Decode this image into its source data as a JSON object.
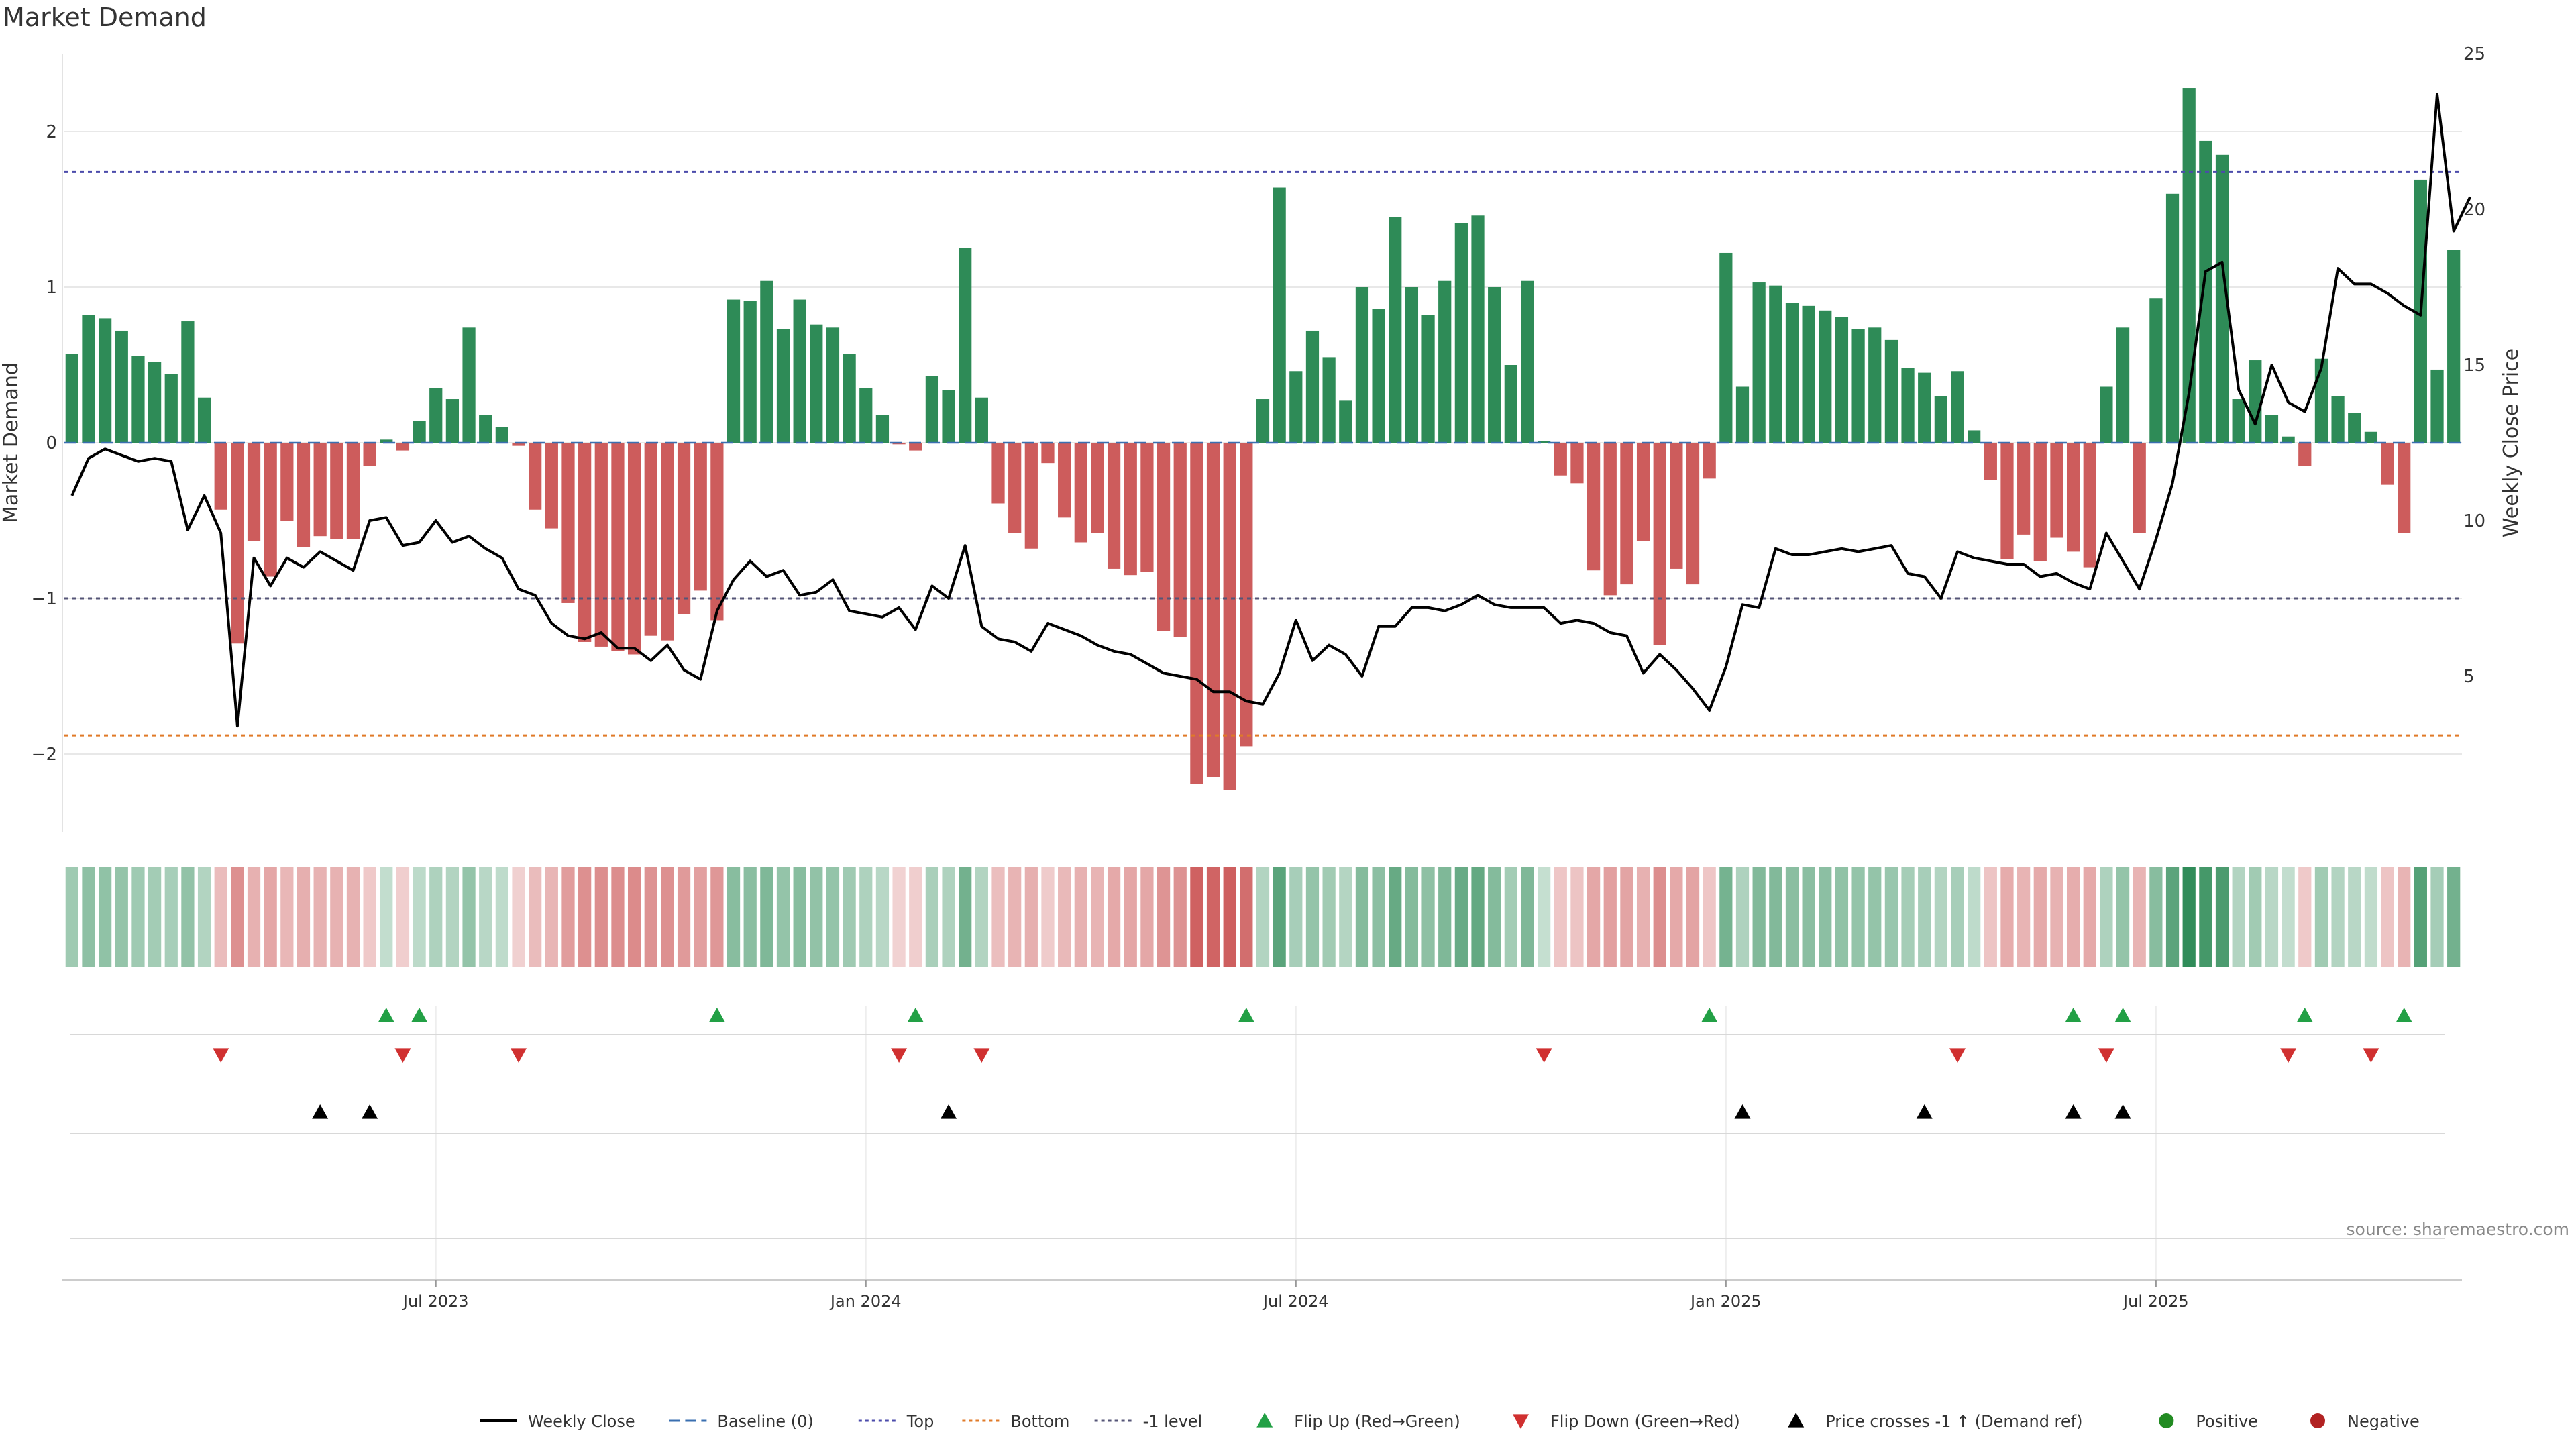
{
  "title": "Market Demand",
  "source": "source: sharemaestro.com",
  "colors": {
    "positive": "#2e8b57",
    "negative": "#cd5c5c",
    "top_line": "#4b4bab",
    "bottom_line": "#e07a28",
    "minus_one_line": "#555577",
    "flip_up": "#22a045",
    "flip_down": "#d03030",
    "price_cross": "#000000",
    "price_line": "#000000",
    "grid": "#e8e8e8"
  },
  "chart_data": {
    "type": "bar",
    "title": "Market Demand",
    "ylabel": "Market Demand",
    "y2label": "Weekly Close Price",
    "ylim": [
      -2.5,
      2.5
    ],
    "y2lim": [
      0,
      25
    ],
    "yticks": [
      -2,
      -1,
      0,
      1,
      2
    ],
    "yticklabels": [
      "−2",
      "−1",
      "0",
      "1",
      "2"
    ],
    "y2ticks": [
      5,
      10,
      15,
      20,
      25
    ],
    "x_tick_labels": [
      {
        "label": "Jul 2023",
        "week_index": 22
      },
      {
        "label": "Jan 2024",
        "week_index": 48
      },
      {
        "label": "Jul 2024",
        "week_index": 74
      },
      {
        "label": "Jan 2025",
        "week_index": 100
      },
      {
        "label": "Jul 2025",
        "week_index": 126
      }
    ],
    "reference_lines": {
      "top": 1.74,
      "bottom": -1.88,
      "minus_one": -1.0,
      "baseline": 0
    },
    "demand": [
      0.57,
      0.82,
      0.8,
      0.72,
      0.56,
      0.52,
      0.44,
      0.78,
      0.29,
      -0.43,
      -1.29,
      -0.63,
      -0.86,
      -0.5,
      -0.67,
      -0.6,
      -0.62,
      -0.62,
      -0.15,
      0.02,
      -0.05,
      0.14,
      0.35,
      0.28,
      0.74,
      0.18,
      0.1,
      -0.02,
      -0.43,
      -0.55,
      -1.03,
      -1.28,
      -1.31,
      -1.34,
      -1.36,
      -1.24,
      -1.27,
      -1.1,
      -0.95,
      -1.14,
      0.92,
      0.91,
      1.04,
      0.73,
      0.92,
      0.76,
      0.74,
      0.57,
      0.35,
      0.18,
      -0.01,
      -0.05,
      0.43,
      0.34,
      1.25,
      0.29,
      -0.39,
      -0.58,
      -0.68,
      -0.13,
      -0.48,
      -0.64,
      -0.58,
      -0.81,
      -0.85,
      -0.83,
      -1.21,
      -1.25,
      -2.19,
      -2.15,
      -2.23,
      -1.95,
      0.28,
      1.64,
      0.46,
      0.72,
      0.55,
      0.27,
      1.0,
      0.86,
      1.45,
      1.0,
      0.82,
      1.04,
      1.41,
      1.46,
      1.0,
      0.5,
      1.04,
      0.01,
      -0.21,
      -0.26,
      -0.82,
      -0.98,
      -0.91,
      -0.63,
      -1.3,
      -0.81,
      -0.91,
      -0.23,
      1.22,
      0.36,
      1.03,
      1.01,
      0.9,
      0.88,
      0.85,
      0.81,
      0.73,
      0.74,
      0.66,
      0.48,
      0.45,
      0.3,
      0.46,
      0.08,
      -0.24,
      -0.75,
      -0.59,
      -0.76,
      -0.61,
      -0.7,
      -0.8,
      0.36,
      0.74,
      -0.58,
      0.93,
      1.6,
      2.28,
      1.94,
      1.85,
      0.28,
      0.53,
      0.18,
      0.04,
      -0.15,
      0.54,
      0.3,
      0.19,
      0.07,
      -0.27,
      -0.58,
      1.69,
      0.47,
      1.24
    ],
    "price": [
      10.8,
      12.0,
      12.3,
      12.1,
      11.9,
      12.0,
      11.9,
      9.7,
      10.8,
      9.6,
      3.4,
      8.8,
      7.9,
      8.8,
      8.5,
      9.0,
      8.7,
      8.4,
      10.0,
      10.1,
      9.2,
      9.3,
      10.0,
      9.3,
      9.5,
      9.1,
      8.8,
      7.8,
      7.6,
      6.7,
      6.3,
      6.2,
      6.4,
      5.9,
      5.9,
      5.5,
      6.0,
      5.2,
      4.9,
      7.1,
      8.1,
      8.7,
      8.2,
      8.4,
      7.6,
      7.7,
      8.1,
      7.1,
      7.0,
      6.9,
      7.2,
      6.5,
      7.9,
      7.5,
      9.2,
      6.6,
      6.2,
      6.1,
      5.8,
      6.7,
      6.5,
      6.3,
      6.0,
      5.8,
      5.7,
      5.4,
      5.1,
      5.0,
      4.9,
      4.5,
      4.5,
      4.2,
      4.1,
      5.1,
      6.8,
      5.5,
      6.0,
      5.7,
      5.0,
      6.6,
      6.6,
      7.2,
      7.2,
      7.1,
      7.3,
      7.6,
      7.3,
      7.2,
      7.2,
      7.2,
      6.7,
      6.8,
      6.7,
      6.4,
      6.3,
      5.1,
      5.7,
      5.2,
      4.6,
      3.9,
      5.3,
      7.3,
      7.2,
      9.1,
      8.9,
      8.9,
      9.0,
      9.1,
      9.0,
      9.1,
      9.2,
      8.3,
      8.2,
      7.5,
      9.0,
      8.8,
      8.7,
      8.6,
      8.6,
      8.2,
      8.3,
      8.0,
      7.8,
      9.6,
      8.7,
      7.8,
      9.4,
      11.2,
      14.1,
      18.0,
      18.3,
      14.2,
      13.1,
      15.0,
      13.8,
      13.5,
      14.9,
      18.1,
      17.6,
      17.6,
      17.3,
      16.9,
      16.6,
      23.7,
      19.3,
      20.4
    ],
    "flip_up_weeks": [
      19,
      21,
      39,
      51,
      71,
      99,
      121,
      124,
      135,
      141
    ],
    "flip_down_weeks": [
      9,
      20,
      27,
      50,
      55,
      89,
      114,
      123,
      134,
      139
    ],
    "price_cross_weeks": [
      15,
      18,
      53,
      101,
      112,
      121,
      124
    ],
    "legend": [
      {
        "label": "Weekly Close",
        "kind": "line-solid"
      },
      {
        "label": "Baseline (0)",
        "kind": "line-dash-blue"
      },
      {
        "label": "Top",
        "kind": "line-dot-purple"
      },
      {
        "label": "Bottom",
        "kind": "line-dot-orange"
      },
      {
        "label": "-1 level",
        "kind": "line-dot-gray"
      },
      {
        "label": "Flip Up (Red→Green)",
        "kind": "tri-up-green"
      },
      {
        "label": "Flip Down (Green→Red)",
        "kind": "tri-down-red"
      },
      {
        "label": "Price crosses -1 ↑ (Demand ref)",
        "kind": "tri-up-black"
      },
      {
        "label": "Positive",
        "kind": "dot-green"
      },
      {
        "label": "Negative",
        "kind": "dot-red"
      }
    ]
  }
}
